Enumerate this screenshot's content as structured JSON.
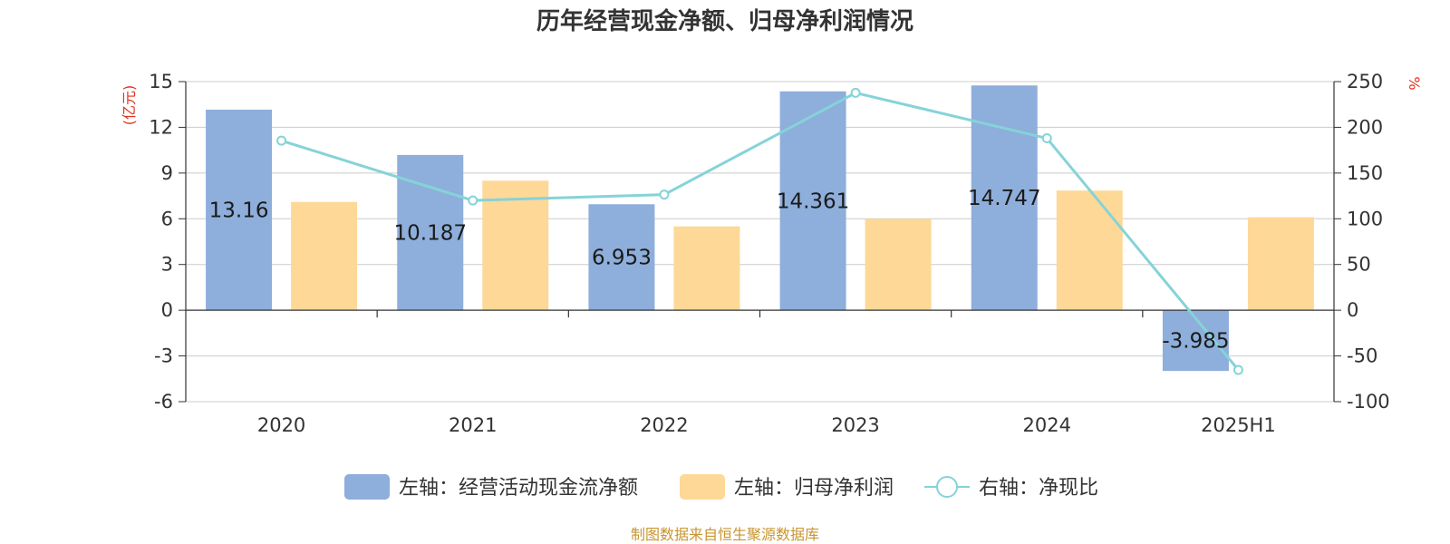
{
  "title": "历年经营现金净额、归母净利润情况",
  "left_unit": "(亿元)",
  "right_unit": "%",
  "source": "制图数据来自恒生聚源数据库",
  "colors": {
    "cash": "#8eaedb",
    "profit": "#fed897",
    "ratio": "#85d3d8",
    "grid": "#cccccc",
    "axis": "#333333",
    "unit": "#e0321e",
    "source": "#c8952f"
  },
  "chart_data": {
    "type": "bar",
    "categories": [
      "2020",
      "2021",
      "2022",
      "2023",
      "2024",
      "2025H1"
    ],
    "series": [
      {
        "name": "左轴：经营活动现金流净额",
        "axis": "left",
        "type": "bar",
        "values": [
          13.16,
          10.187,
          6.953,
          14.361,
          14.747,
          -3.985
        ],
        "labels": [
          "13.16",
          "10.187",
          "6.953",
          "14.361",
          "14.747",
          "-3.985"
        ]
      },
      {
        "name": "左轴：归母净利润",
        "axis": "left",
        "type": "bar",
        "values": [
          7.1,
          8.5,
          5.5,
          6.0,
          7.85,
          6.1
        ]
      },
      {
        "name": "右轴：净现比",
        "axis": "right",
        "type": "line",
        "values": [
          185.4,
          120.0,
          126.4,
          237.7,
          188.0,
          -65.3
        ]
      }
    ],
    "left_axis": {
      "ylim": [
        -6,
        15
      ],
      "ticks": [
        "15",
        "12",
        "9",
        "6",
        "3",
        "0",
        "-3",
        "-6"
      ]
    },
    "right_axis": {
      "ylim": [
        -100,
        250
      ],
      "ticks": [
        "250",
        "200",
        "150",
        "100",
        "50",
        "0",
        "-50",
        "-100"
      ]
    },
    "grid": true,
    "legend_position": "bottom-center"
  }
}
